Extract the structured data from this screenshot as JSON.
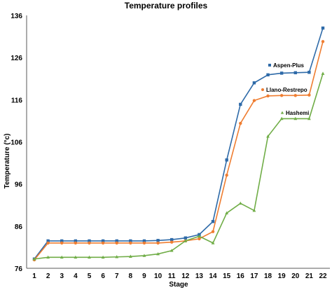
{
  "chart_data": {
    "type": "line",
    "title": "Temperature profiles",
    "xlabel": "Stage",
    "ylabel": "Temperature (°c)",
    "x": [
      1,
      2,
      3,
      4,
      5,
      6,
      7,
      8,
      9,
      10,
      11,
      12,
      13,
      14,
      15,
      16,
      17,
      18,
      19,
      20,
      21,
      22
    ],
    "xtick_labels": [
      "1",
      "2",
      "3",
      "4",
      "5",
      "6",
      "7",
      "8",
      "9",
      "10",
      "11",
      "12",
      "13",
      "14",
      "15",
      "16",
      "17",
      "18",
      "19",
      "20",
      "21",
      "22"
    ],
    "ylim": [
      76,
      136
    ],
    "yticks": [
      76,
      86,
      96,
      106,
      116,
      126,
      136
    ],
    "grid": false,
    "series": [
      {
        "name": "Aspen-Plus",
        "color": "#2e6aa8",
        "marker": "square",
        "values": [
          78.2,
          82.5,
          82.5,
          82.5,
          82.5,
          82.5,
          82.5,
          82.5,
          82.5,
          82.6,
          82.8,
          83.2,
          84.0,
          87.1,
          101.7,
          114.9,
          120.0,
          121.9,
          122.3,
          122.4,
          122.5,
          133.0
        ]
      },
      {
        "name": "Llano-Restrepo",
        "color": "#ef7d31",
        "marker": "circle",
        "values": [
          78.0,
          82.0,
          82.0,
          82.0,
          82.0,
          82.0,
          82.0,
          82.0,
          82.0,
          82.0,
          82.2,
          82.5,
          83.0,
          84.7,
          98.1,
          110.4,
          115.8,
          116.9,
          117.0,
          117.0,
          117.1,
          129.8
        ]
      },
      {
        "name": "Hashemi",
        "color": "#70ad47",
        "marker": "triangle",
        "values": [
          78.2,
          78.6,
          78.6,
          78.6,
          78.6,
          78.6,
          78.7,
          78.8,
          79.0,
          79.4,
          80.2,
          82.5,
          83.6,
          82.0,
          89.1,
          91.4,
          89.7,
          107.3,
          111.5,
          111.5,
          111.5,
          122.2
        ]
      }
    ]
  }
}
